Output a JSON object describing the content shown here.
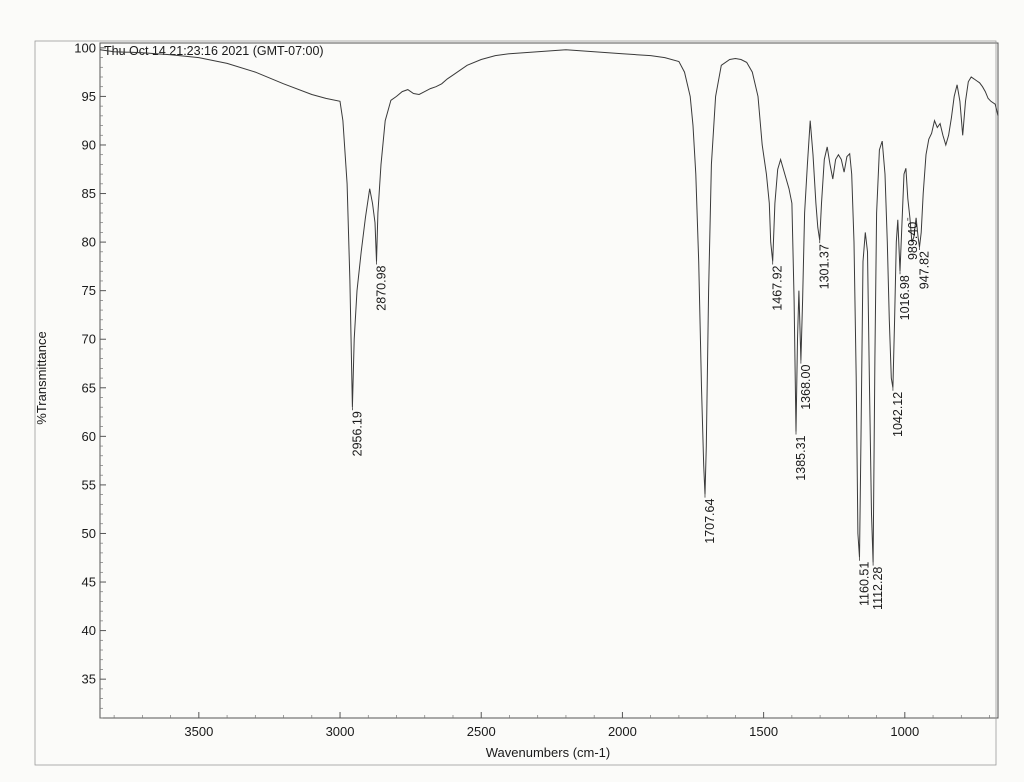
{
  "chart_data": {
    "type": "line",
    "header": "Thu Oct 14 21:23:16 2021 (GMT-07:00)",
    "xlabel": "Wavenumbers (cm-1)",
    "ylabel": "%Transmittance",
    "xlim": [
      3850,
      670
    ],
    "ylim": [
      31,
      100.5
    ],
    "x_reversed": true,
    "x_ticks": [
      3500,
      3000,
      2500,
      2000,
      1500,
      1000
    ],
    "y_ticks": [
      35,
      40,
      45,
      50,
      55,
      60,
      65,
      70,
      75,
      80,
      85,
      90,
      95,
      100
    ],
    "grid": false,
    "colors": {
      "trace": "#3a3a3a",
      "axis": "#555555",
      "text": "#1a1a1a"
    },
    "series": [
      {
        "x": [
          3850,
          3800,
          3700,
          3600,
          3500,
          3400,
          3300,
          3200,
          3100,
          3050,
          3000,
          2990,
          2975,
          2965,
          2956.19,
          2950,
          2940,
          2925,
          2910,
          2895,
          2885,
          2876,
          2870.98,
          2866,
          2855,
          2840,
          2820,
          2800,
          2780,
          2760,
          2740,
          2720,
          2700,
          2680,
          2660,
          2640,
          2620,
          2600,
          2550,
          2500,
          2450,
          2400,
          2350,
          2300,
          2250,
          2200,
          2150,
          2100,
          2050,
          2000,
          1950,
          1900,
          1850,
          1800,
          1780,
          1760,
          1750,
          1740,
          1730,
          1720,
          1712,
          1707.64,
          1703,
          1695,
          1685,
          1670,
          1650,
          1620,
          1600,
          1580,
          1560,
          1540,
          1520,
          1505,
          1490,
          1480,
          1475,
          1467.92,
          1460,
          1450,
          1440,
          1430,
          1420,
          1410,
          1400,
          1392,
          1385.31,
          1380,
          1375,
          1368.0,
          1362,
          1355,
          1345,
          1335,
          1325,
          1315,
          1308,
          1301.37,
          1295,
          1285,
          1275,
          1265,
          1255,
          1245,
          1235,
          1225,
          1215,
          1205,
          1195,
          1188,
          1180,
          1172,
          1166,
          1160.51,
          1155,
          1148,
          1140,
          1132,
          1125,
          1118,
          1112.28,
          1106,
          1100,
          1090,
          1080,
          1070,
          1062,
          1055,
          1048,
          1042.12,
          1036,
          1030,
          1025,
          1016.98,
          1010,
          1003,
          996,
          989.4,
          982,
          975,
          968,
          960,
          953,
          947.82,
          942,
          935,
          925,
          915,
          905,
          895,
          885,
          875,
          865,
          855,
          845,
          835,
          825,
          815,
          805,
          795,
          785,
          775,
          765,
          755,
          745,
          735,
          725,
          715,
          705,
          695,
          680,
          670
        ],
        "y": [
          99.8,
          99.6,
          99.5,
          99.3,
          99.0,
          98.4,
          97.5,
          96.3,
          95.2,
          94.8,
          94.5,
          92.5,
          86,
          76,
          63.0,
          70,
          75,
          79,
          82.5,
          85.5,
          84,
          82,
          78.0,
          83,
          88,
          92.5,
          94.6,
          95.0,
          95.5,
          95.7,
          95.3,
          95.2,
          95.5,
          95.8,
          96.0,
          96.3,
          96.8,
          97.2,
          98.2,
          98.8,
          99.2,
          99.4,
          99.5,
          99.6,
          99.7,
          99.8,
          99.7,
          99.6,
          99.5,
          99.4,
          99.3,
          99.2,
          99.0,
          98.6,
          97.5,
          95,
          92,
          87,
          78,
          65,
          57,
          54.0,
          59,
          75,
          88,
          95,
          98.2,
          98.8,
          98.9,
          98.8,
          98.5,
          97.5,
          95,
          90,
          87,
          84,
          80,
          78.0,
          84,
          87.5,
          88.5,
          87.5,
          86.5,
          85.5,
          84,
          74,
          60.5,
          70,
          75,
          67.8,
          74,
          83,
          88,
          92.5,
          89,
          84,
          81.5,
          80.2,
          84,
          88.5,
          89.8,
          88,
          86.5,
          88.5,
          89.0,
          88.5,
          87.2,
          88.8,
          89.1,
          87,
          80,
          66,
          50,
          47.5,
          60,
          78,
          81,
          79,
          65,
          52,
          47.0,
          68,
          83,
          89.5,
          90.4,
          87,
          80,
          72,
          66,
          65.0,
          72,
          80,
          82.3,
          77.0,
          82,
          87,
          87.6,
          84.5,
          82.5,
          80.0,
          80.5,
          82.5,
          80.5,
          79.5,
          81,
          85,
          89,
          90.6,
          91.2,
          92.5,
          91.8,
          92.2,
          91.0,
          90.0,
          91.0,
          92.8,
          95.0,
          96.2,
          94.5,
          91.0,
          94.5,
          96.5,
          97.0,
          96.8,
          96.6,
          96.4,
          96.0,
          95.5,
          94.8,
          94.5,
          94.2,
          93.0
        ]
      }
    ],
    "peak_labels": [
      {
        "text": "2956.19",
        "x": 2956.19,
        "y": 63.0
      },
      {
        "text": "2870.98",
        "x": 2870.98,
        "y": 78.0
      },
      {
        "text": "1707.64",
        "x": 1707.64,
        "y": 54.0
      },
      {
        "text": "1467.92",
        "x": 1467.92,
        "y": 78.0
      },
      {
        "text": "1385.31",
        "x": 1385.31,
        "y": 60.5
      },
      {
        "text": "1368.00",
        "x": 1368.0,
        "y": 67.8
      },
      {
        "text": "1301.37",
        "x": 1301.37,
        "y": 80.2
      },
      {
        "text": "1160.51",
        "x": 1160.51,
        "y": 47.5
      },
      {
        "text": "1112.28",
        "x": 1112.28,
        "y": 47.0
      },
      {
        "text": "1042.12",
        "x": 1042.12,
        "y": 65.0
      },
      {
        "text": "1016.98",
        "x": 1016.98,
        "y": 77.0
      },
      {
        "text": "989.40",
        "x": 989.4,
        "y": 82.5
      },
      {
        "text": "947.82",
        "x": 947.82,
        "y": 79.5
      }
    ]
  }
}
